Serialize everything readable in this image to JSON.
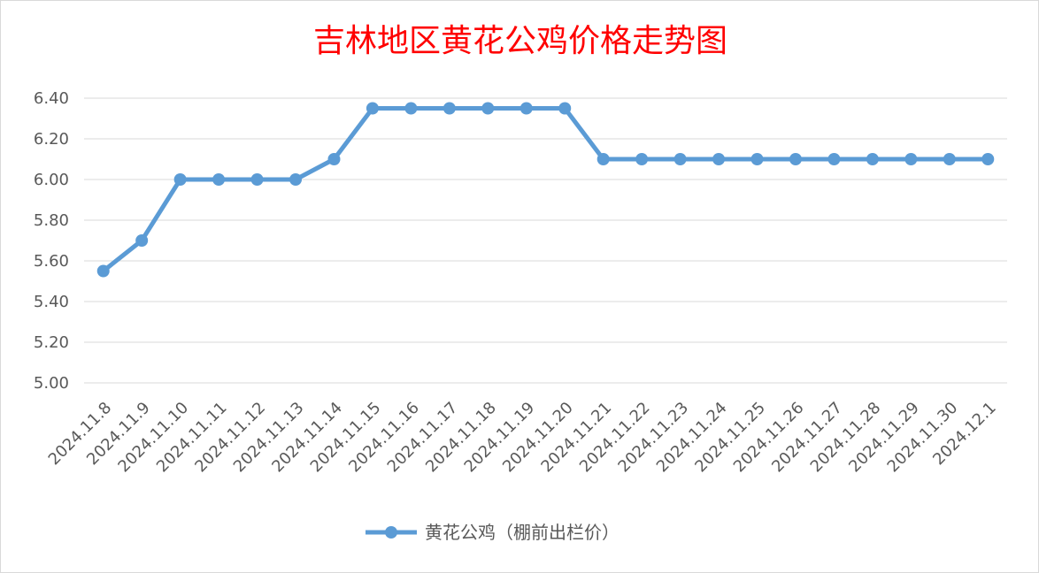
{
  "chart_data": {
    "type": "line",
    "title": "吉林地区黄花公鸡价格走势图",
    "xlabel": "",
    "ylabel": "",
    "ylim": [
      5.0,
      6.4
    ],
    "y_ticks": [
      "5.00",
      "5.20",
      "5.40",
      "5.60",
      "5.80",
      "6.00",
      "6.20",
      "6.40"
    ],
    "grid": true,
    "legend_position": "bottom",
    "categories": [
      "2024.11.8",
      "2024.11.9",
      "2024.11.10",
      "2024.11.11",
      "2024.11.12",
      "2024.11.13",
      "2024.11.14",
      "2024.11.15",
      "2024.11.16",
      "2024.11.17",
      "2024.11.18",
      "2024.11.19",
      "2024.11.20",
      "2024.11.21",
      "2024.11.22",
      "2024.11.23",
      "2024.11.24",
      "2024.11.25",
      "2024.11.26",
      "2024.11.27",
      "2024.11.28",
      "2024.11.29",
      "2024.11.30",
      "2024.12.1"
    ],
    "series": [
      {
        "name": "黄花公鸡（棚前出栏价）",
        "color": "#5b9bd5",
        "values": [
          5.55,
          5.7,
          6.0,
          6.0,
          6.0,
          6.0,
          6.1,
          6.35,
          6.35,
          6.35,
          6.35,
          6.35,
          6.35,
          6.1,
          6.1,
          6.1,
          6.1,
          6.1,
          6.1,
          6.1,
          6.1,
          6.1,
          6.1,
          6.1
        ]
      }
    ]
  }
}
